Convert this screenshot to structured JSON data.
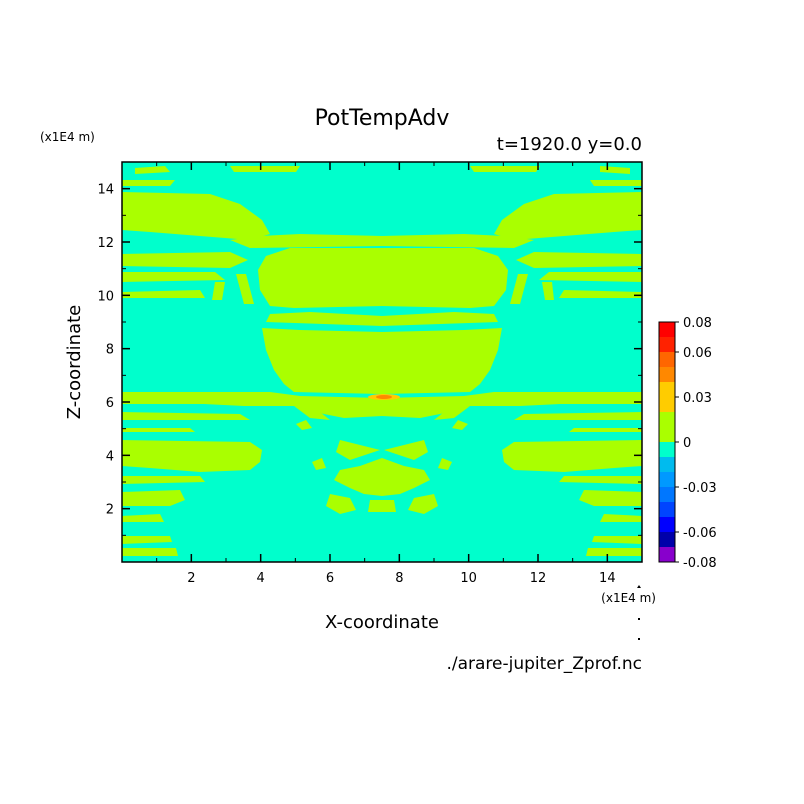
{
  "chart_data": {
    "type": "heatmap",
    "title": "PotTempAdv",
    "subtitle": "t=1920.0 y=0.0",
    "xlabel": "X-coordinate",
    "ylabel": "Z-coordinate",
    "x_unit": "(x1E4 m)",
    "y_unit": "(x1E4 m)",
    "source_file": "./arare-jupiter_Zprof.nc",
    "xlim": [
      0,
      15
    ],
    "ylim": [
      0,
      15
    ],
    "xticks": [
      2,
      4,
      6,
      8,
      10,
      12,
      14
    ],
    "yticks": [
      2,
      4,
      6,
      8,
      10,
      12,
      14
    ],
    "colorbar": {
      "labels": [
        "0.08",
        "0.06",
        "0.03",
        "0",
        "-0.03",
        "-0.06",
        "-0.08"
      ],
      "levels": [
        -0.08,
        -0.07,
        -0.06,
        -0.05,
        -0.04,
        -0.03,
        -0.02,
        -0.01,
        0,
        0.01,
        0.02,
        0.03,
        0.04,
        0.05,
        0.06,
        0.07,
        0.08
      ],
      "colors_bottom_to_top": [
        "#8800cc",
        "#0000aa",
        "#0000ff",
        "#0044ff",
        "#0077ff",
        "#0099ff",
        "#00bbee",
        "#00ffcc",
        "#aaff00",
        "#aaff00",
        "#ffcc00",
        "#ffcc00",
        "#ff8800",
        "#ff6600",
        "#ff2200",
        "#ff0000",
        "#ffaaaa"
      ]
    },
    "fields": {
      "background_level": "-0.01..0 (#00ffcc)",
      "positive_level": "0..0.01 (#aaff00)",
      "peak_level": "0.02..0.03 (#ffcc00 / orange) near x=7.5, z=6.1"
    }
  }
}
